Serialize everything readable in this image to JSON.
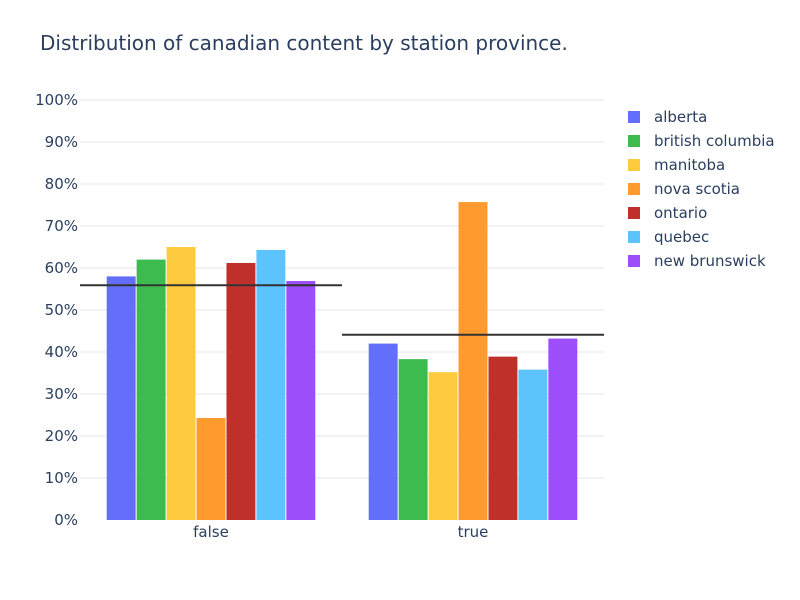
{
  "chart_data": {
    "type": "bar",
    "title": "Distribution of canadian content by station province.",
    "xlabel": "",
    "ylabel": "",
    "categories": [
      "false",
      "true"
    ],
    "ylim": [
      0,
      100
    ],
    "y_ticks": [
      "0%",
      "10%",
      "20%",
      "30%",
      "40%",
      "50%",
      "60%",
      "70%",
      "80%",
      "90%",
      "100%"
    ],
    "grid": true,
    "legend_position": "top-right",
    "series": [
      {
        "name": "alberta",
        "color": "#636efa",
        "values": [
          58,
          42
        ]
      },
      {
        "name": "british columbia",
        "color": "#3dbb4f",
        "values": [
          62,
          38.3
        ]
      },
      {
        "name": "manitoba",
        "color": "#fecb3e",
        "values": [
          65,
          35.2
        ]
      },
      {
        "name": "nova scotia",
        "color": "#ff9a2e",
        "values": [
          24.3,
          75.7
        ]
      },
      {
        "name": "ontario",
        "color": "#c0302a",
        "values": [
          61.2,
          38.9
        ]
      },
      {
        "name": "quebec",
        "color": "#5cc3fc",
        "values": [
          64.3,
          35.8
        ]
      },
      {
        "name": "new brunswick",
        "color": "#9b4ef9",
        "values": [
          56.9,
          43.2
        ]
      }
    ],
    "reference_lines": [
      {
        "category": "false",
        "value": 55.9
      },
      {
        "category": "true",
        "value": 44.1
      }
    ]
  }
}
